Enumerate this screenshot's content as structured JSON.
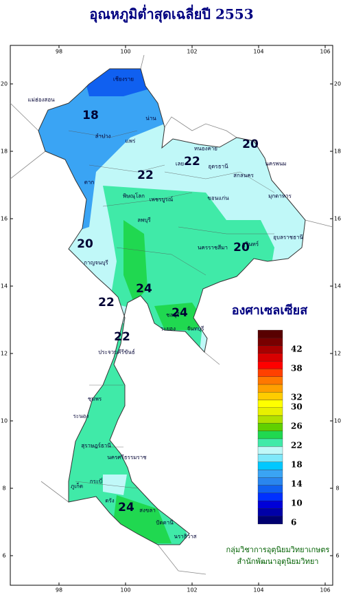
{
  "title": "อุณหภูมิต่ำสุดเฉลี่ยปี 2553",
  "map": {
    "lon_ticks": [
      98,
      100,
      102,
      104,
      106
    ],
    "lat_ticks": [
      6,
      8,
      10,
      12,
      14,
      16,
      18,
      20
    ],
    "contour_labels": [
      "18",
      "20",
      "22",
      "22",
      "20",
      "20",
      "22",
      "24",
      "24",
      "22",
      "24"
    ],
    "places": [
      "เชียงราย",
      "แม่ฮ่องสอน",
      "น่าน",
      "ลำปาง",
      "แพร่",
      "ตาก",
      "เลย",
      "หนองคาย",
      "อุดรธานี",
      "สกลนคร",
      "นครพนม",
      "ขอนแก่น",
      "มุกดาหาร",
      "นครราชสีมา",
      "อุบลราชธานี",
      "สุรินทร์",
      "กาญจนบุรี",
      "ชลบุรี",
      "ระยอง",
      "จันทบุรี",
      "ประจวบคีรีขันธ์",
      "ชุมพร",
      "ระนอง",
      "สุราษฎร์ธานี",
      "นครศรีธรรมราช",
      "ภูเก็ต",
      "กระบี่",
      "ตรัง",
      "สงขลา",
      "ปัตตานี",
      "นราธิวาส",
      "เพชรบูรณ์",
      "พิษณุโลก",
      "ลพบุรี"
    ]
  },
  "legend": {
    "title": "องศาเซลเซียส",
    "colors": [
      "#000070",
      "#0000a8",
      "#0000d8",
      "#0030ff",
      "#1060f0",
      "#2a86ee",
      "#3aa4f4",
      "#00c8ff",
      "#7ee8fa",
      "#c0f8f8",
      "#40eaa8",
      "#20d850",
      "#60d000",
      "#b0e000",
      "#e8f000",
      "#ffff00",
      "#ffcc00",
      "#ffa000",
      "#ff7800",
      "#ff4000",
      "#ff0000",
      "#d80000",
      "#a80000",
      "#780000",
      "#580000"
    ],
    "labels": [
      6,
      10,
      14,
      18,
      22,
      26,
      30,
      32,
      38,
      42
    ]
  },
  "credits": [
    "กลุ่มวิชาการอุตุนิยมวิทยาเกษตร",
    "สำนักพัฒนาอุตุนิยมวิทยา"
  ]
}
